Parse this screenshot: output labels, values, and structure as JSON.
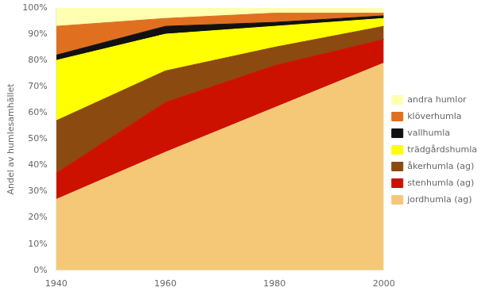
{
  "chart_data": {
    "type": "area",
    "stacked": true,
    "x": [
      1940,
      1960,
      1980,
      2000
    ],
    "series": [
      {
        "name": "jordhumla (ag)",
        "color": "#F5C878",
        "values": [
          27,
          45,
          62,
          79
        ]
      },
      {
        "name": "stenhumla (ag)",
        "color": "#CC1100",
        "values": [
          10,
          19,
          16,
          9
        ]
      },
      {
        "name": "åkerhumla (ag)",
        "color": "#8B4A10",
        "values": [
          20,
          12,
          7,
          5
        ]
      },
      {
        "name": "trädgårdshumla",
        "color": "#FFFF00",
        "values": [
          23,
          14,
          8,
          3
        ]
      },
      {
        "name": "vallhumla",
        "color": "#111111",
        "values": [
          2,
          3,
          1.5,
          1
        ]
      },
      {
        "name": "klöverhumla",
        "color": "#E07020",
        "values": [
          11,
          3,
          3.5,
          1
        ]
      },
      {
        "name": "andra humlor",
        "color": "#FFFFB0",
        "values": [
          7,
          4,
          2,
          2
        ]
      }
    ],
    "ylabel": "Andel av humlesamhället",
    "xlim": [
      1940,
      2000
    ],
    "xticks": [
      1940,
      1960,
      1980,
      2000
    ],
    "ylim": [
      0,
      100
    ],
    "yticks": [
      {
        "value": 0,
        "label": "0%"
      },
      {
        "value": 10,
        "label": "10%"
      },
      {
        "value": 20,
        "label": "20%"
      },
      {
        "value": 30,
        "label": "30%"
      },
      {
        "value": 40,
        "label": "40%"
      },
      {
        "value": 50,
        "label": "50%"
      },
      {
        "value": 60,
        "label": "60%"
      },
      {
        "value": 70,
        "label": "70%"
      },
      {
        "value": 80,
        "label": "80%"
      },
      {
        "value": 90,
        "label": "90%"
      },
      {
        "value": 100,
        "label": "100%"
      }
    ],
    "grid": false,
    "legend": "right"
  }
}
